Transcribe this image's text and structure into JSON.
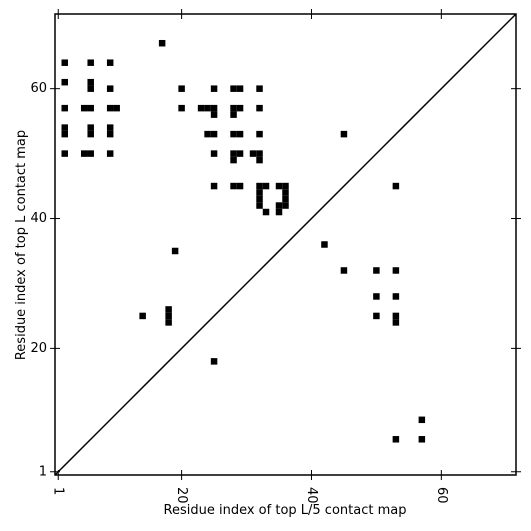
{
  "chart_data": {
    "type": "scatter",
    "xlabel": "Residue index of top L/5 contact map",
    "ylabel": "Residue index of top L contact map",
    "xlim": [
      0.5,
      71.5
    ],
    "ylim": [
      0.5,
      71.5
    ],
    "xticks": [
      1,
      20,
      40,
      60
    ],
    "yticks": [
      1,
      20,
      40,
      60
    ],
    "color": "#000000",
    "diagonal": true,
    "x": [
      2,
      6,
      9,
      17,
      2,
      6,
      6,
      9,
      20,
      25,
      28,
      29,
      32,
      2,
      5,
      6,
      9,
      10,
      20,
      23,
      24,
      25,
      28,
      29,
      32,
      25,
      28,
      2,
      2,
      6,
      6,
      9,
      9,
      24,
      25,
      28,
      29,
      32,
      45,
      2,
      5,
      6,
      9,
      25,
      28,
      29,
      31,
      32,
      28,
      32,
      25,
      28,
      29,
      32,
      33,
      35,
      36,
      53,
      32,
      36,
      32,
      36,
      32,
      35,
      36,
      33,
      35,
      42,
      19,
      45,
      50,
      53,
      50,
      53,
      14,
      18,
      50,
      53,
      18,
      18,
      53,
      25,
      57,
      53,
      57
    ],
    "values": [
      64,
      64,
      64,
      67,
      61,
      61,
      60,
      60,
      60,
      60,
      60,
      60,
      60,
      57,
      57,
      57,
      57,
      57,
      57,
      57,
      57,
      57,
      57,
      57,
      57,
      56,
      56,
      54,
      53,
      54,
      53,
      54,
      53,
      53,
      53,
      53,
      53,
      53,
      53,
      50,
      50,
      50,
      50,
      50,
      50,
      50,
      50,
      50,
      49,
      49,
      45,
      45,
      45,
      45,
      45,
      45,
      45,
      45,
      44,
      44,
      43,
      43,
      42,
      42,
      42,
      41,
      41,
      36,
      35,
      32,
      32,
      32,
      28,
      28,
      25,
      25,
      25,
      25,
      26,
      24,
      24,
      18,
      9,
      6,
      6
    ]
  }
}
